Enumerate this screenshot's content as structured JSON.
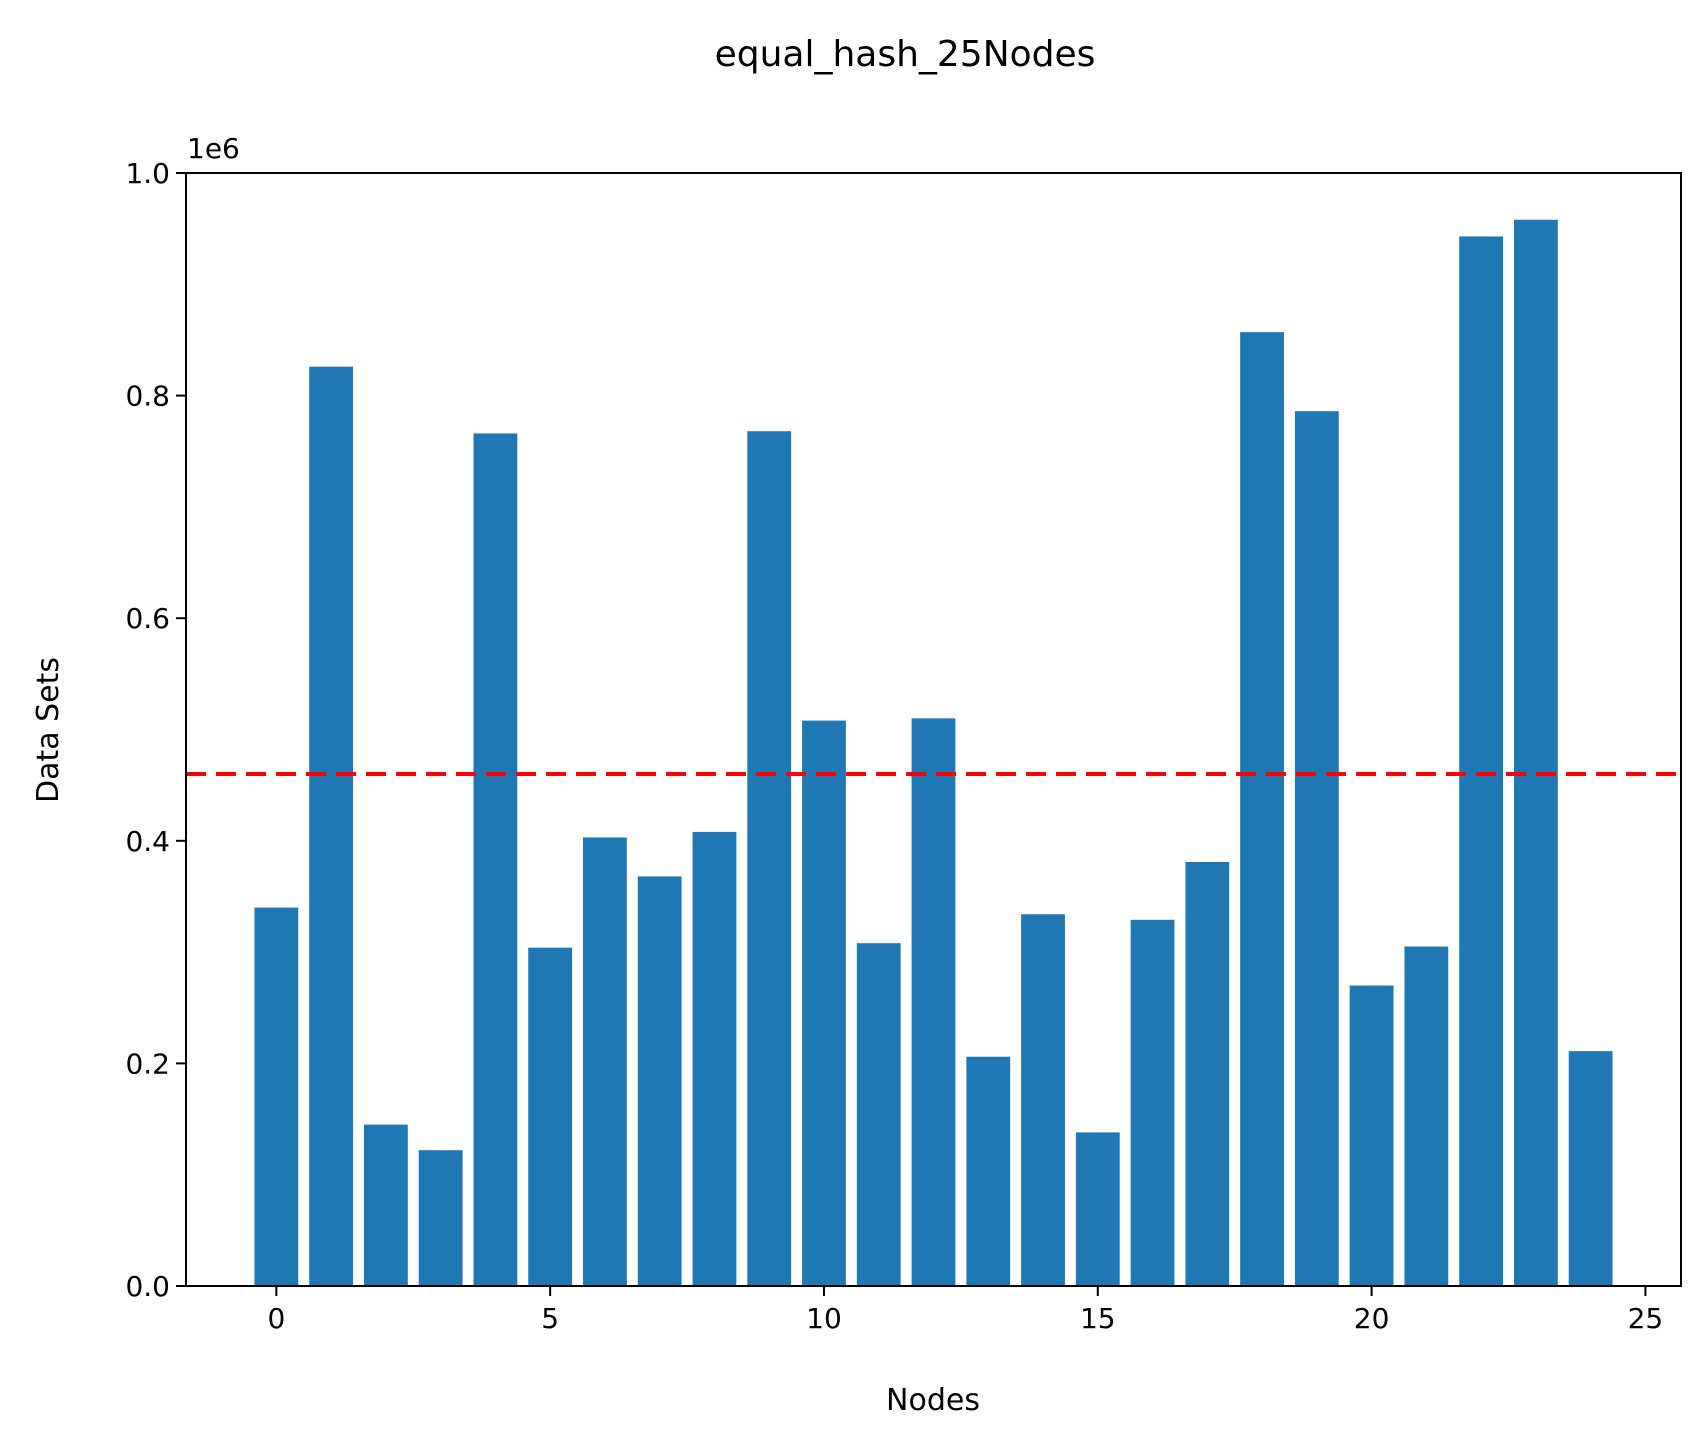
{
  "chart_data": {
    "type": "bar",
    "title": "equal_hash_25Nodes",
    "xlabel": "Nodes",
    "ylabel": "Data Sets",
    "y_scale_label": "1e6",
    "categories": [
      0,
      1,
      2,
      3,
      4,
      5,
      6,
      7,
      8,
      9,
      10,
      11,
      12,
      13,
      14,
      15,
      16,
      17,
      18,
      19,
      20,
      21,
      22,
      23,
      24
    ],
    "values": [
      340000,
      826000,
      145000,
      122000,
      766000,
      304000,
      403000,
      368000,
      408000,
      768000,
      508000,
      308000,
      510000,
      206000,
      334000,
      138000,
      329000,
      381000,
      857000,
      786000,
      270000,
      305000,
      943000,
      958000,
      211000
    ],
    "reference_line": {
      "y": 460000,
      "style": "dashed",
      "color": "#ff0000"
    },
    "xlim": [
      -1.65,
      25.65
    ],
    "ylim": [
      0,
      1000000
    ],
    "x_ticks": [
      "0",
      "5",
      "10",
      "15",
      "20",
      "25"
    ],
    "y_ticks": [
      "0.0",
      "0.2",
      "0.4",
      "0.6",
      "0.8",
      "1.0"
    ],
    "bar_color": "#1f77b4",
    "grid": false,
    "legend": "none"
  }
}
